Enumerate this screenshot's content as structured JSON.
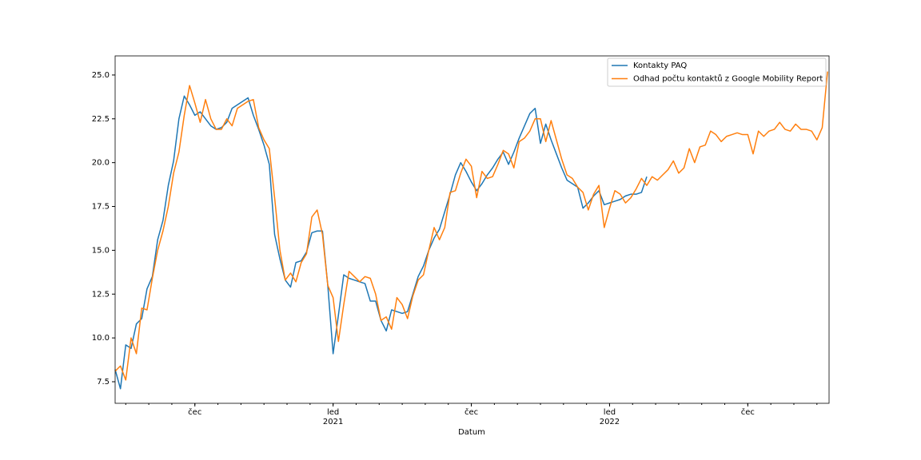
{
  "chart_data": {
    "type": "line",
    "xlabel": "Datum",
    "categories": [
      null,
      null,
      null,
      null,
      null,
      null,
      null,
      null,
      null,
      null,
      null,
      null,
      null,
      null,
      null,
      "čec",
      null,
      null,
      null,
      null,
      null,
      null,
      null,
      null,
      null,
      null,
      null,
      null,
      null,
      null,
      null,
      null,
      null,
      null,
      null,
      null,
      null,
      null,
      null,
      null,
      null,
      "led\n2021",
      null,
      null,
      null,
      null,
      null,
      null,
      null,
      null,
      null,
      null,
      null,
      null,
      null,
      null,
      null,
      null,
      null,
      null,
      null,
      null,
      null,
      null,
      null,
      null,
      null,
      "čec",
      null,
      null,
      null,
      null,
      null,
      null,
      null,
      null,
      null,
      null,
      null,
      null,
      null,
      null,
      null,
      null,
      null,
      null,
      null,
      null,
      null,
      null,
      null,
      null,
      null,
      "led\n2022",
      null,
      null,
      null,
      null,
      null,
      null,
      null,
      null,
      null,
      null,
      null,
      null,
      null,
      null,
      null,
      null,
      null,
      null,
      null,
      null,
      null,
      null,
      null,
      null,
      null,
      "čec",
      null,
      null,
      null,
      null,
      null,
      null,
      null,
      null,
      null,
      null,
      null,
      null,
      null,
      null,
      null
    ],
    "series": [
      {
        "name": "Kontakty PAQ",
        "color": "#1f77b4",
        "values": [
          8.2,
          7.1,
          9.6,
          9.4,
          10.8,
          11.1,
          12.8,
          13.5,
          15.6,
          16.7,
          18.7,
          20.1,
          22.5,
          23.8,
          23.3,
          22.7,
          22.9,
          22.5,
          22.1,
          21.9,
          22.0,
          22.3,
          23.1,
          23.3,
          23.5,
          23.7,
          22.7,
          21.9,
          21.0,
          19.9,
          15.9,
          14.5,
          13.3,
          12.9,
          14.3,
          14.4,
          14.9,
          16.0,
          16.1,
          16.1,
          13.0,
          9.1,
          11.3,
          13.6,
          13.4,
          13.3,
          13.2,
          13.1,
          12.1,
          12.1,
          11.0,
          10.4,
          11.6,
          11.5,
          11.4,
          11.5,
          12.5,
          13.5,
          14.1,
          15.0,
          15.7,
          16.2,
          17.2,
          18.2,
          19.3,
          20.0,
          19.5,
          18.9,
          18.4,
          18.8,
          19.3,
          19.7,
          20.2,
          20.6,
          19.9,
          20.6,
          21.4,
          22.1,
          22.8,
          23.1,
          21.1,
          22.2,
          21.3,
          20.5,
          19.7,
          19.0,
          18.8,
          18.6,
          17.4,
          17.7,
          18.1,
          18.4,
          17.6,
          17.7,
          17.8,
          17.9,
          18.1,
          18.2,
          18.2,
          18.3,
          19.2,
          null,
          null,
          null,
          null,
          null,
          null,
          null,
          null,
          null,
          null,
          null,
          null,
          null,
          null,
          null,
          null,
          null,
          null,
          null,
          null,
          null,
          null,
          null,
          null,
          null,
          null,
          null,
          null,
          null,
          null,
          null,
          null,
          null,
          null
        ]
      },
      {
        "name": "Odhad počtu kontaktů z Google Mobility Report",
        "color": "#ff7f0e",
        "values": [
          8.1,
          8.4,
          7.6,
          10.0,
          9.1,
          11.7,
          11.6,
          13.4,
          15.0,
          16.1,
          17.5,
          19.4,
          20.6,
          22.7,
          24.4,
          23.4,
          22.3,
          23.6,
          22.5,
          21.9,
          21.9,
          22.5,
          22.1,
          23.1,
          23.3,
          23.5,
          23.6,
          22.0,
          21.3,
          20.8,
          18.0,
          15.0,
          13.3,
          13.7,
          13.2,
          14.3,
          14.8,
          16.9,
          17.3,
          15.9,
          13.0,
          12.3,
          9.8,
          11.9,
          13.8,
          13.5,
          13.2,
          13.5,
          13.4,
          12.5,
          11.0,
          11.2,
          10.5,
          12.3,
          11.9,
          11.1,
          12.4,
          13.3,
          13.6,
          15.0,
          16.3,
          15.6,
          16.3,
          18.3,
          18.4,
          19.4,
          20.2,
          19.8,
          18.0,
          19.5,
          19.1,
          19.2,
          19.9,
          20.7,
          20.5,
          19.7,
          21.2,
          21.4,
          21.8,
          22.5,
          22.5,
          21.2,
          22.4,
          21.3,
          20.2,
          19.3,
          19.1,
          18.6,
          18.3,
          17.3,
          18.2,
          18.7,
          16.3,
          17.4,
          18.4,
          18.2,
          17.7,
          18.0,
          18.5,
          19.1,
          18.7,
          19.2,
          19.0,
          19.3,
          19.6,
          20.1,
          19.4,
          19.7,
          20.8,
          20.0,
          20.9,
          21.0,
          21.8,
          21.6,
          21.2,
          21.5,
          21.6,
          21.7,
          21.6,
          21.6,
          20.5,
          21.8,
          21.5,
          21.8,
          21.9,
          22.3,
          21.9,
          21.8,
          22.2,
          21.9,
          21.9,
          21.8,
          21.3,
          22.0,
          25.2
        ]
      }
    ],
    "ylim": [
      6.27,
      26.09
    ],
    "yticks": [
      7.5,
      {
        "value": 10,
        "label": "10.0"
      },
      12.5,
      {
        "value": 15,
        "label": "15.0"
      },
      17.5,
      {
        "value": 20,
        "label": "20.0"
      },
      22.5,
      {
        "value": 25,
        "label": "25.0"
      }
    ],
    "legend": "upper right"
  }
}
